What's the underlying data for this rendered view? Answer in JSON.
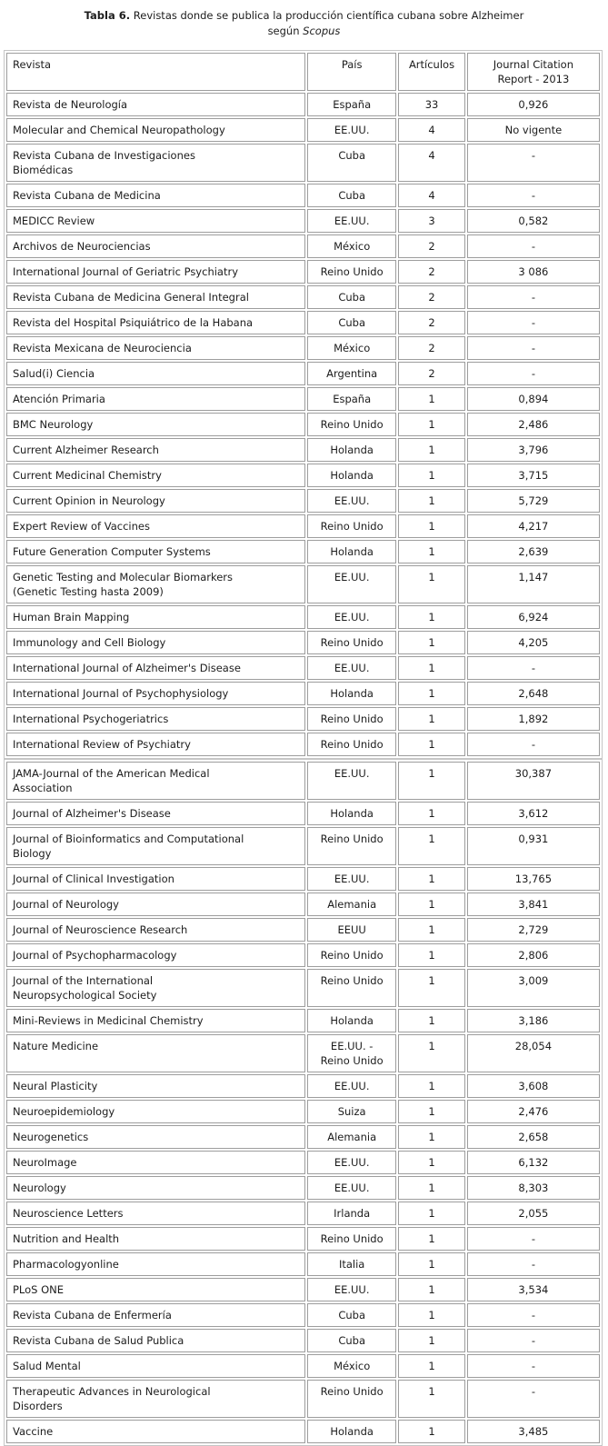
{
  "title": {
    "label": "Tabla 6.",
    "line1_rest": "Revistas donde se publica la producción científica cubana sobre Alzheimer",
    "line2_prefix": "según",
    "line2_emphasis": "Scopus"
  },
  "table": {
    "headers": {
      "revista": "Revista",
      "pais": "País",
      "articulos": "Artículos",
      "jcr": "Journal Citation\nReport - 2013"
    },
    "sections": [
      {
        "rows": [
          {
            "revista": "Revista de Neurología",
            "pais": "España",
            "articulos": "33",
            "jcr": "0,926"
          },
          {
            "revista": "Molecular and Chemical Neuropathology",
            "pais": "EE.UU.",
            "articulos": "4",
            "jcr": "No vigente"
          },
          {
            "revista": "Revista Cubana de Investigaciones\nBiomédicas",
            "pais": "Cuba",
            "articulos": "4",
            "jcr": "-"
          },
          {
            "revista": "Revista Cubana de Medicina",
            "pais": "Cuba",
            "articulos": "4",
            "jcr": "-"
          },
          {
            "revista": "MEDICC Review",
            "pais": "EE.UU.",
            "articulos": "3",
            "jcr": "0,582"
          },
          {
            "revista": "Archivos de Neurociencias",
            "pais": "México",
            "articulos": "2",
            "jcr": "-"
          },
          {
            "revista": "International Journal of Geriatric Psychiatry",
            "pais": "Reino Unido",
            "articulos": "2",
            "jcr": "3 086"
          },
          {
            "revista": "Revista Cubana de Medicina General Integral",
            "pais": "Cuba",
            "articulos": "2",
            "jcr": "-"
          },
          {
            "revista": "Revista del Hospital Psiquiátrico de la Habana",
            "pais": "Cuba",
            "articulos": "2",
            "jcr": "-"
          },
          {
            "revista": "Revista Mexicana de Neurociencia",
            "pais": "México",
            "articulos": "2",
            "jcr": "-"
          },
          {
            "revista": "Salud(i) Ciencia",
            "pais": "Argentina",
            "articulos": "2",
            "jcr": "-"
          },
          {
            "revista": "Atención Primaria",
            "pais": "España",
            "articulos": "1",
            "jcr": "0,894"
          },
          {
            "revista": "BMC Neurology",
            "pais": "Reino Unido",
            "articulos": "1",
            "jcr": "2,486"
          },
          {
            "revista": "Current Alzheimer Research",
            "pais": "Holanda",
            "articulos": "1",
            "jcr": "3,796"
          },
          {
            "revista": "Current Medicinal Chemistry",
            "pais": "Holanda",
            "articulos": "1",
            "jcr": "3,715"
          },
          {
            "revista": "Current Opinion in Neurology",
            "pais": "EE.UU.",
            "articulos": "1",
            "jcr": "5,729"
          },
          {
            "revista": "Expert Review of Vaccines",
            "pais": "Reino Unido",
            "articulos": "1",
            "jcr": "4,217"
          },
          {
            "revista": "Future Generation Computer Systems",
            "pais": "Holanda",
            "articulos": "1",
            "jcr": "2,639"
          },
          {
            "revista": "Genetic Testing and Molecular Biomarkers\n(Genetic Testing hasta 2009)",
            "pais": "EE.UU.",
            "articulos": "1",
            "jcr": "1,147"
          },
          {
            "revista": "Human Brain Mapping",
            "pais": "EE.UU.",
            "articulos": "1",
            "jcr": "6,924"
          },
          {
            "revista": "Immunology and Cell Biology",
            "pais": "Reino Unido",
            "articulos": "1",
            "jcr": "4,205"
          },
          {
            "revista": "International Journal of Alzheimer's Disease",
            "pais": "EE.UU.",
            "articulos": "1",
            "jcr": "-"
          },
          {
            "revista": "International Journal of Psychophysiology",
            "pais": "Holanda",
            "articulos": "1",
            "jcr": "2,648"
          },
          {
            "revista": "International Psychogeriatrics",
            "pais": "Reino Unido",
            "articulos": "1",
            "jcr": "1,892"
          },
          {
            "revista": "International Review of Psychiatry",
            "pais": "Reino Unido",
            "articulos": "1",
            "jcr": "-"
          }
        ]
      },
      {
        "rows": [
          {
            "revista": "JAMA-Journal of the American Medical\nAssociation",
            "pais": "EE.UU.",
            "articulos": "1",
            "jcr": "30,387"
          },
          {
            "revista": "Journal of Alzheimer's Disease",
            "pais": "Holanda",
            "articulos": "1",
            "jcr": "3,612"
          },
          {
            "revista": "Journal of Bioinformatics and Computational\nBiology",
            "pais": "Reino Unido",
            "articulos": "1",
            "jcr": "0,931"
          },
          {
            "revista": "Journal of Clinical Investigation",
            "pais": "EE.UU.",
            "articulos": "1",
            "jcr": "13,765"
          },
          {
            "revista": "Journal of Neurology",
            "pais": "Alemania",
            "articulos": "1",
            "jcr": "3,841"
          },
          {
            "revista": "Journal of Neuroscience Research",
            "pais": "EEUU",
            "articulos": "1",
            "jcr": "2,729"
          },
          {
            "revista": "Journal of Psychopharmacology",
            "pais": "Reino Unido",
            "articulos": "1",
            "jcr": "2,806"
          },
          {
            "revista": "Journal of the International\nNeuropsychological Society",
            "pais": "Reino Unido",
            "articulos": "1",
            "jcr": "3,009"
          },
          {
            "revista": "Mini-Reviews in Medicinal Chemistry",
            "pais": "Holanda",
            "articulos": "1",
            "jcr": "3,186"
          },
          {
            "revista": "Nature Medicine",
            "pais": "EE.UU. -\nReino Unido",
            "articulos": "1",
            "jcr": "28,054"
          },
          {
            "revista": "Neural Plasticity",
            "pais": "EE.UU.",
            "articulos": "1",
            "jcr": "3,608"
          },
          {
            "revista": "Neuroepidemiology",
            "pais": "Suiza",
            "articulos": "1",
            "jcr": "2,476"
          },
          {
            "revista": "Neurogenetics",
            "pais": "Alemania",
            "articulos": "1",
            "jcr": "2,658"
          },
          {
            "revista": "NeuroImage",
            "pais": "EE.UU.",
            "articulos": "1",
            "jcr": "6,132"
          },
          {
            "revista": "Neurology",
            "pais": "EE.UU.",
            "articulos": "1",
            "jcr": "8,303"
          },
          {
            "revista": "Neuroscience Letters",
            "pais": "Irlanda",
            "articulos": "1",
            "jcr": "2,055"
          },
          {
            "revista": "Nutrition and Health",
            "pais": "Reino Unido",
            "articulos": "1",
            "jcr": "-"
          },
          {
            "revista": "Pharmacologyonline",
            "pais": "Italia",
            "articulos": "1",
            "jcr": "-"
          },
          {
            "revista": "PLoS ONE",
            "pais": "EE.UU.",
            "articulos": "1",
            "jcr": "3,534"
          },
          {
            "revista": "Revista Cubana de Enfermería",
            "pais": "Cuba",
            "articulos": "1",
            "jcr": "-"
          },
          {
            "revista": "Revista Cubana de Salud Publica",
            "pais": "Cuba",
            "articulos": "1",
            "jcr": "-"
          },
          {
            "revista": "Salud Mental",
            "pais": "México",
            "articulos": "1",
            "jcr": "-"
          },
          {
            "revista": "Therapeutic Advances in Neurological\nDisorders",
            "pais": "Reino Unido",
            "articulos": "1",
            "jcr": "-"
          },
          {
            "revista": "Vaccine",
            "pais": "Holanda",
            "articulos": "1",
            "jcr": "3,485"
          }
        ]
      }
    ]
  }
}
